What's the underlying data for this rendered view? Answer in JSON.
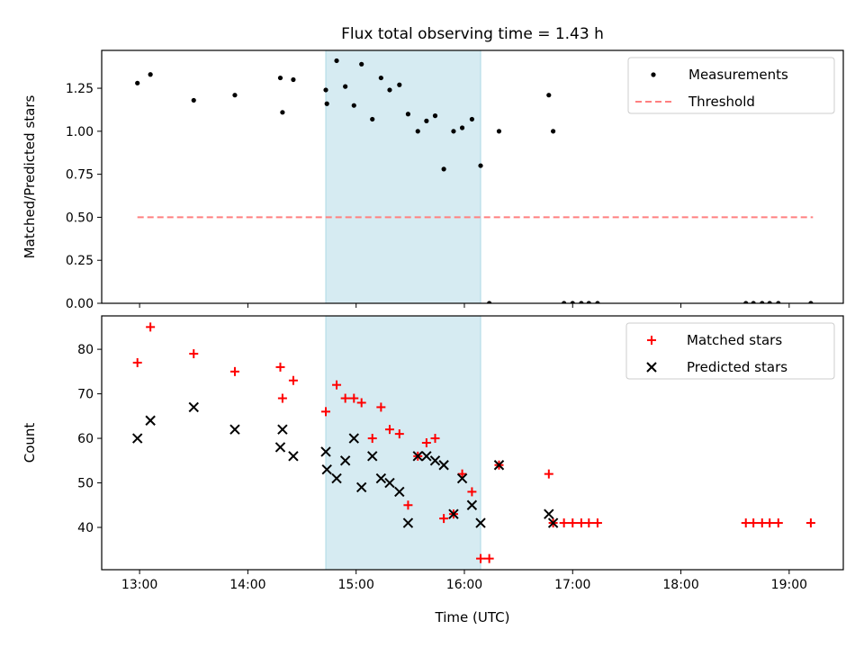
{
  "title": "Flux total observing time = 1.43 h",
  "colors": {
    "band": "#add8e6",
    "matched": "#ff0000",
    "predicted": "#000000",
    "threshold": "#ff8080",
    "measurement": "#000000"
  },
  "chart_data": [
    {
      "type": "scatter",
      "ylabel": "Matched/Predicted stars",
      "xlim": [
        12.65,
        19.5
      ],
      "ylim": [
        0.0,
        1.47
      ],
      "x_ticks": [
        13,
        14,
        15,
        16,
        17,
        18,
        19
      ],
      "x_tick_labels": [
        "",
        "",
        "",
        "",
        "",
        "",
        ""
      ],
      "y_ticks": [
        0.0,
        0.25,
        0.5,
        0.75,
        1.0,
        1.25
      ],
      "y_tick_labels": [
        "0.00",
        "0.25",
        "0.50",
        "0.75",
        "1.00",
        "1.25"
      ],
      "shaded_region": {
        "x_start": 14.72,
        "x_end": 16.15
      },
      "legend": {
        "location": "upper right",
        "entries": [
          "Measurements",
          "Threshold"
        ]
      },
      "threshold": {
        "name": "Threshold",
        "y": 0.5,
        "x_start": 12.98,
        "x_end": 19.22
      },
      "series": [
        {
          "name": "Measurements",
          "x": [
            12.98,
            13.1,
            13.5,
            13.88,
            14.3,
            14.32,
            14.42,
            14.72,
            14.73,
            14.82,
            14.9,
            14.98,
            15.05,
            15.15,
            15.23,
            15.31,
            15.4,
            15.48,
            15.57,
            15.65,
            15.73,
            15.81,
            15.9,
            15.98,
            16.07,
            16.15,
            16.23,
            16.32,
            16.78,
            16.82,
            16.92,
            17.0,
            17.08,
            17.15,
            17.23,
            18.6,
            18.67,
            18.75,
            18.82,
            18.9,
            19.2
          ],
          "y": [
            1.28,
            1.33,
            1.18,
            1.21,
            1.31,
            1.11,
            1.3,
            1.24,
            1.16,
            1.41,
            1.26,
            1.15,
            1.39,
            1.07,
            1.31,
            1.24,
            1.27,
            1.1,
            1.0,
            1.06,
            1.09,
            0.78,
            1.0,
            1.02,
            1.07,
            0.8,
            0.0,
            1.0,
            1.21,
            1.0,
            0.0,
            0.0,
            0.0,
            0.0,
            0.0,
            0.0,
            0.0,
            0.0,
            0.0,
            0.0,
            0.0
          ]
        }
      ]
    },
    {
      "type": "scatter",
      "xlabel": "Time (UTC)",
      "ylabel": "Count",
      "xlim": [
        12.65,
        19.5
      ],
      "ylim": [
        30.5,
        87.5
      ],
      "x_ticks": [
        13,
        14,
        15,
        16,
        17,
        18,
        19
      ],
      "x_tick_labels": [
        "13:00",
        "14:00",
        "15:00",
        "16:00",
        "17:00",
        "18:00",
        "19:00"
      ],
      "y_ticks": [
        40,
        50,
        60,
        70,
        80
      ],
      "y_tick_labels": [
        "40",
        "50",
        "60",
        "70",
        "80"
      ],
      "shaded_region": {
        "x_start": 14.72,
        "x_end": 16.15
      },
      "legend": {
        "location": "upper right",
        "entries": [
          "Matched stars",
          "Predicted stars"
        ]
      },
      "series": [
        {
          "name": "Matched stars",
          "marker": "+",
          "x": [
            12.98,
            13.1,
            13.5,
            13.88,
            14.3,
            14.32,
            14.42,
            14.72,
            14.82,
            14.9,
            14.98,
            15.05,
            15.15,
            15.23,
            15.31,
            15.4,
            15.48,
            15.57,
            15.65,
            15.73,
            15.81,
            15.9,
            15.98,
            16.07,
            16.15,
            16.23,
            16.32,
            16.78,
            16.82,
            16.92,
            17.0,
            17.08,
            17.15,
            17.23,
            18.6,
            18.67,
            18.75,
            18.82,
            18.9,
            19.2
          ],
          "y": [
            77,
            85,
            79,
            75,
            76,
            69,
            73,
            66,
            72,
            69,
            69,
            68,
            60,
            67,
            62,
            61,
            45,
            56,
            59,
            60,
            42,
            43,
            52,
            48,
            33,
            33,
            54,
            52,
            41,
            41,
            41,
            41,
            41,
            41,
            41,
            41,
            41,
            41,
            41,
            41
          ]
        },
        {
          "name": "Predicted stars",
          "marker": "x",
          "x": [
            12.98,
            13.1,
            13.5,
            13.88,
            14.3,
            14.32,
            14.42,
            14.72,
            14.73,
            14.82,
            14.9,
            14.98,
            15.05,
            15.15,
            15.23,
            15.31,
            15.4,
            15.48,
            15.57,
            15.65,
            15.73,
            15.81,
            15.9,
            15.98,
            16.07,
            16.15,
            16.32,
            16.78,
            16.82
          ],
          "y": [
            60,
            64,
            67,
            62,
            58,
            62,
            56,
            57,
            53,
            51,
            55,
            60,
            49,
            56,
            51,
            50,
            48,
            41,
            56,
            56,
            55,
            54,
            43,
            51,
            45,
            41,
            54,
            43,
            41
          ]
        }
      ]
    }
  ]
}
